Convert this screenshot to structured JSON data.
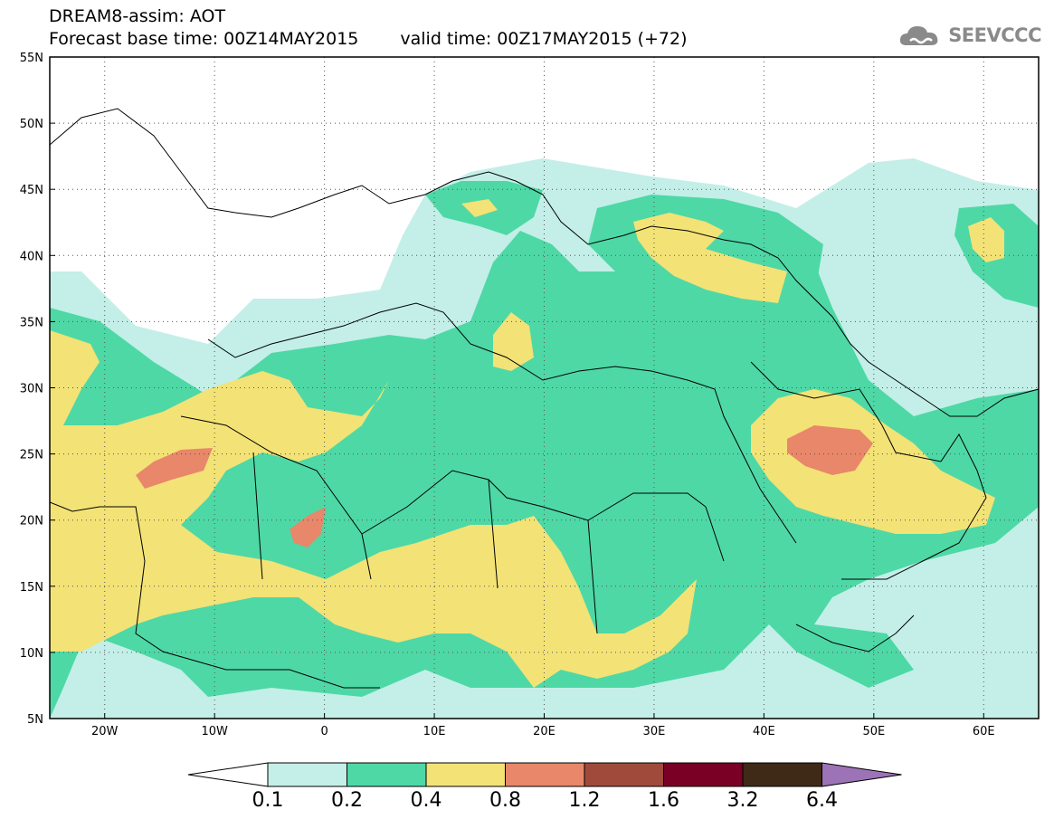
{
  "header": {
    "model_line": "DREAM8-assim: AOT",
    "base_time": "Forecast base time: 00Z14MAY2015",
    "valid_time": "valid time: 00Z17MAY2015 (+72)"
  },
  "logo": {
    "text": "SEEVCCC",
    "icon": "cloud-icon"
  },
  "map": {
    "lat_labels": [
      "55N",
      "50N",
      "45N",
      "40N",
      "35N",
      "30N",
      "25N",
      "20N",
      "15N",
      "10N",
      "5N"
    ],
    "lon_labels": [
      "20W",
      "10W",
      "0",
      "10E",
      "20E",
      "30E",
      "40E",
      "50E",
      "60E"
    ],
    "lat_range": [
      5,
      55
    ],
    "lon_range": [
      -25,
      65
    ],
    "grid": "dotted"
  },
  "colorbar": {
    "labels": [
      "0.1",
      "0.2",
      "0.4",
      "0.8",
      "1.2",
      "1.6",
      "3.2",
      "6.4"
    ],
    "colors": [
      "#ffffff",
      "#c3efe8",
      "#4ed8a6",
      "#f3e276",
      "#e8876a",
      "#a04a3c",
      "#7a0026",
      "#3e2a17",
      "#9c73b6"
    ]
  }
}
